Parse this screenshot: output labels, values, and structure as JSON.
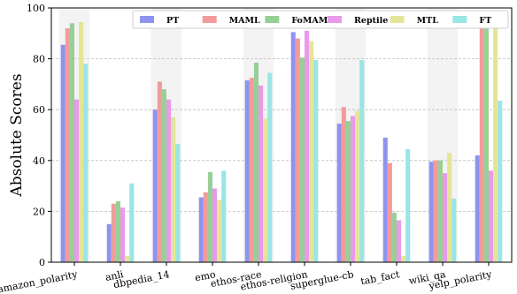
{
  "chart_data": {
    "type": "bar",
    "ylabel": "Absolute Scores",
    "ylim": [
      0,
      100
    ],
    "yticks": [
      "0",
      "20",
      "40",
      "60",
      "80",
      "100"
    ],
    "grid": "horizontal dashed",
    "legend_position": "top-right",
    "categories": [
      "amazon_polarity",
      "anli",
      "dbpedia_14",
      "emo",
      "ethos-race",
      "ethos-religion",
      "superglue-cb",
      "tab_fact",
      "wiki_qa",
      "yelp_polarity"
    ],
    "series": [
      {
        "name": "PT",
        "color": "#8f93f0",
        "values": [
          85.5,
          15,
          60,
          25.5,
          71.5,
          90.5,
          54.5,
          49,
          39.5,
          42
        ]
      },
      {
        "name": "MAML",
        "color": "#f29b9b",
        "values": [
          92,
          23,
          71,
          27.5,
          72.5,
          88,
          61,
          39,
          40,
          96
        ]
      },
      {
        "name": "FoMAML",
        "color": "#97cf97",
        "values": [
          94,
          24,
          68,
          35.5,
          78.5,
          80.5,
          55.5,
          19.5,
          40,
          95
        ]
      },
      {
        "name": "Reptile",
        "color": "#e99ae9",
        "values": [
          64,
          21.5,
          64,
          29,
          69.5,
          91,
          57.5,
          16.5,
          35,
          36
        ]
      },
      {
        "name": "MTL",
        "color": "#e5e59a",
        "values": [
          94.5,
          2.5,
          57,
          24.5,
          56.5,
          87,
          59.5,
          2.5,
          43,
          94.5
        ]
      },
      {
        "name": "FT",
        "color": "#9ae5e5",
        "values": [
          78,
          31,
          46.5,
          36,
          74.5,
          79.5,
          79.5,
          44.5,
          25,
          63.5
        ]
      }
    ]
  }
}
